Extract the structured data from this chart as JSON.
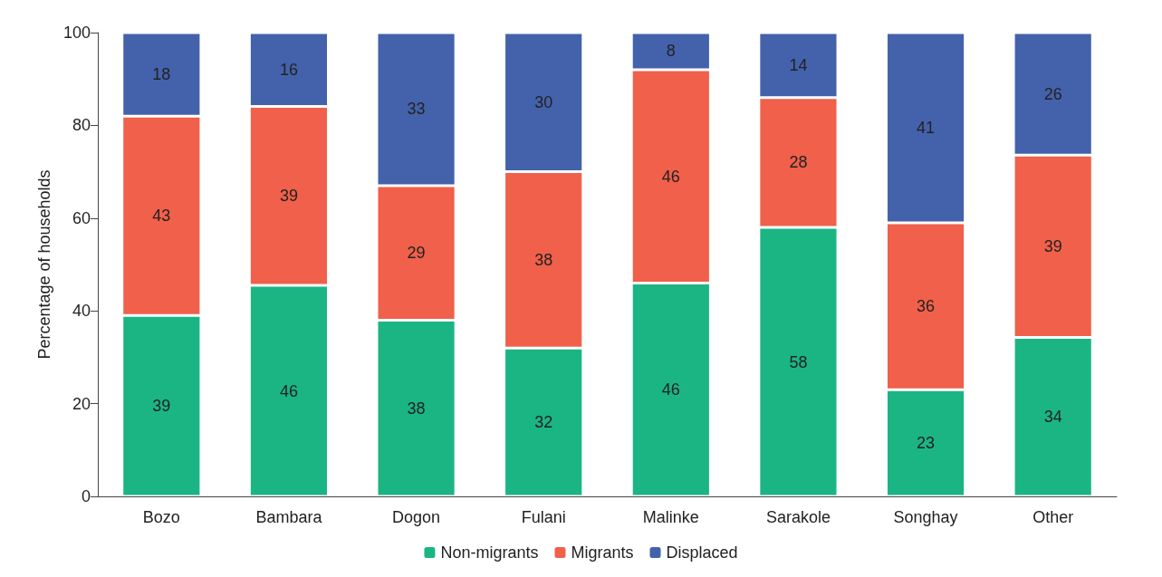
{
  "chart_data": {
    "type": "bar",
    "stacked": true,
    "ylabel": "Percentage of households",
    "categories": [
      "Bozo",
      "Bambara",
      "Dogon",
      "Fulani",
      "Malinke",
      "Sarakole",
      "Songhay",
      "Other"
    ],
    "series": [
      {
        "name": "Non-migrants",
        "color": "#1bb584",
        "values": [
          39,
          45.5,
          38,
          32,
          46,
          58,
          23,
          34.3
        ],
        "value_labels": [
          "39",
          "46",
          "38",
          "32",
          "46",
          "58",
          "23",
          "34"
        ]
      },
      {
        "name": "Migrants",
        "color": "#f0604a",
        "values": [
          43,
          38.6,
          29,
          38,
          46,
          28,
          36,
          39.3
        ],
        "value_labels": [
          "43",
          "39",
          "29",
          "38",
          "46",
          "28",
          "36",
          "39"
        ]
      },
      {
        "name": "Displaced",
        "color": "#4462ab",
        "values": [
          18,
          15.9,
          33,
          30,
          8,
          14,
          41,
          26.4
        ],
        "value_labels": [
          "18",
          "16",
          "33",
          "30",
          "8",
          "14",
          "41",
          "26"
        ]
      }
    ],
    "ylim": [
      0,
      100
    ],
    "yticks": [
      0,
      20,
      40,
      60,
      80,
      100
    ],
    "grid": false,
    "legend": "bottom"
  }
}
